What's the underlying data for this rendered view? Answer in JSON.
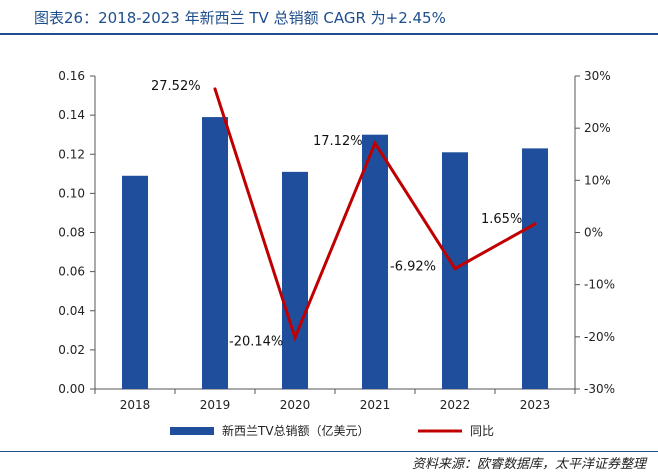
{
  "header": {
    "title": "图表26：2018-2023 年新西兰 TV 总销额 CAGR 为+2.45%"
  },
  "footer": {
    "source": "资料来源：欧睿数据库，太平洋证券整理"
  },
  "colors": {
    "bar": "#1f4e9c",
    "line": "#c00000",
    "title": "#1f4e8c",
    "axis": "#555555"
  },
  "chart_data": {
    "type": "bar",
    "title": "2018-2023 年新西兰 TV 总销额 CAGR 为+2.45%",
    "categories": [
      "2018",
      "2019",
      "2020",
      "2021",
      "2022",
      "2023"
    ],
    "series": [
      {
        "name": "新西兰TV总销额（亿美元）",
        "type": "bar",
        "axis": "left",
        "values": [
          0.109,
          0.139,
          0.111,
          0.13,
          0.121,
          0.123
        ]
      },
      {
        "name": "同比",
        "type": "line",
        "axis": "right",
        "values": [
          null,
          27.52,
          -20.14,
          17.12,
          -6.92,
          1.65
        ]
      }
    ],
    "data_labels": [
      "",
      "27.52%",
      "-20.14%",
      "17.12%",
      "-6.92%",
      "1.65%"
    ],
    "y_left": {
      "lim": [
        0,
        0.16
      ],
      "ticks": [
        "0.00",
        "0.02",
        "0.04",
        "0.06",
        "0.08",
        "0.10",
        "0.12",
        "0.14",
        "0.16"
      ]
    },
    "y_right": {
      "lim": [
        -30,
        30
      ],
      "ticks": [
        "-30%",
        "-20%",
        "-10%",
        "0%",
        "10%",
        "20%",
        "30%"
      ]
    },
    "legend": [
      "新西兰TV总销额（亿美元）",
      "同比"
    ],
    "legend_position": "bottom"
  }
}
